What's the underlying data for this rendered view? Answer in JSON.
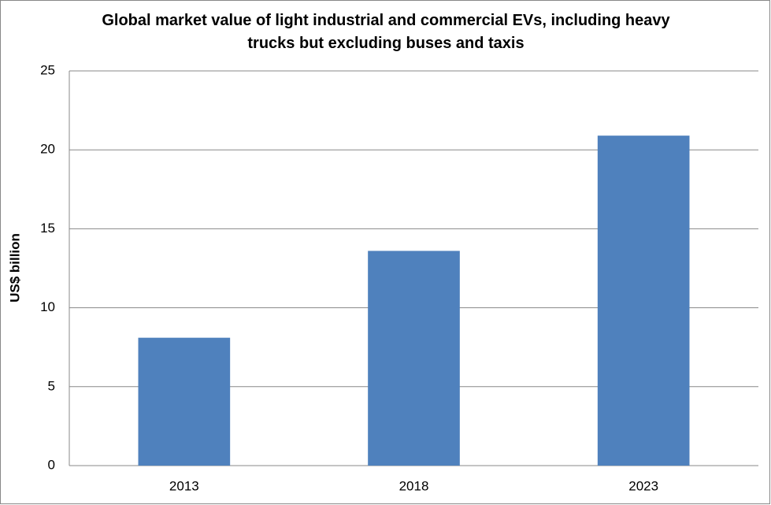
{
  "chart_data": {
    "type": "bar",
    "title": "Global market value of light industrial and commercial EVs, including heavy trucks but excluding buses and taxis",
    "y_label": "US$ billion",
    "categories": [
      "2013",
      "2018",
      "2023"
    ],
    "values": [
      8.1,
      13.6,
      20.9
    ],
    "color": "#4f81bd",
    "ylim": [
      0,
      25
    ],
    "yticks": [
      0,
      5,
      10,
      15,
      20,
      25
    ],
    "grid": true
  }
}
